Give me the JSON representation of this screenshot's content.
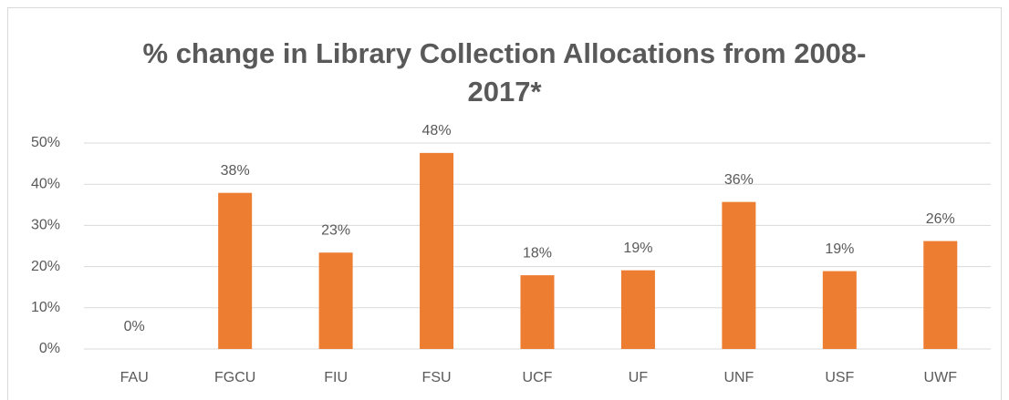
{
  "chart_data": {
    "type": "bar",
    "title": "% change in Library Collection Allocations from 2008-2017*",
    "categories": [
      "FAU",
      "FGCU",
      "FIU",
      "FSU",
      "UCF",
      "UF",
      "UNF",
      "USF",
      "UWF"
    ],
    "values": [
      0,
      37.9,
      23.4,
      47.6,
      17.9,
      19.1,
      35.7,
      18.9,
      26.2
    ],
    "value_labels": [
      "0%",
      "38%",
      "23%",
      "48%",
      "18%",
      "19%",
      "36%",
      "19%",
      "26%"
    ],
    "color": "#ed7d31",
    "ylim": [
      0,
      50
    ],
    "yticks": [
      {
        "value": 0,
        "label": "0%"
      },
      {
        "value": 10,
        "label": "10%"
      },
      {
        "value": 20,
        "label": "20%"
      },
      {
        "value": 30,
        "label": "30%"
      },
      {
        "value": 40,
        "label": "40%"
      },
      {
        "value": 50,
        "label": "50%"
      }
    ],
    "grid": true
  }
}
